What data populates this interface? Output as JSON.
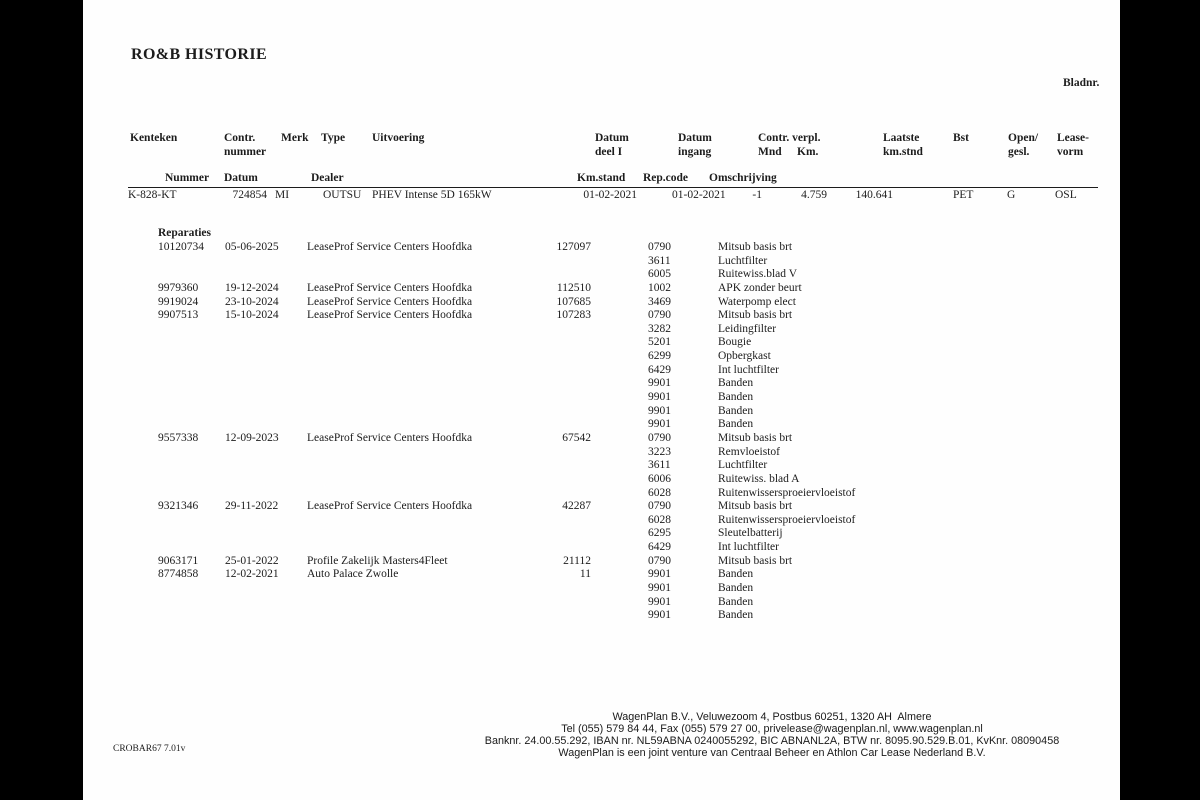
{
  "colors": {
    "outside_bg": "#000000",
    "page_bg": "#fefefe",
    "text": "#1c1c1c"
  },
  "header": {
    "title": "RO&B HISTORIE",
    "bladnr_label": "Bladnr."
  },
  "columns_top": {
    "kenteken": "Kenteken",
    "contr_l1": "Contr.",
    "contr_l2": "nummer",
    "merk": "Merk",
    "type": "Type",
    "uitvoering": "Uitvoering",
    "datum_deel1_l1": "Datum",
    "datum_deel1_l2": "deel I",
    "datum_ingang_l1": "Datum",
    "datum_ingang_l2": "ingang",
    "contr_verpl": "Contr. verpl.",
    "mnd": "Mnd",
    "km": "Km.",
    "laatste_l1": "Laatste",
    "laatste_l2": "km.stnd",
    "bst": "Bst",
    "open_l1": "Open/",
    "open_l2": "gesl.",
    "lease_l1": "Lease-",
    "lease_l2": "vorm"
  },
  "columns_sub": {
    "nummer": "Nummer",
    "datum": "Datum",
    "dealer": "Dealer",
    "km_stand": "Km.stand",
    "rep_code": "Rep.code",
    "omschrijving": "Omschrijving"
  },
  "contract": {
    "kenteken": "K-828-KT",
    "contr_nummer": "724854",
    "merk": "MI",
    "type": "OUTSU",
    "uitvoering": "PHEV Intense 5D 165kW",
    "datum_deel1": "01-02-2021",
    "datum_ingang": "01-02-2021",
    "contr_verpl_mnd": "-1",
    "contr_verpl_km": "4.759",
    "laatste_km_stnd": "140.641",
    "bst": "PET",
    "open_gesl": "G",
    "leasevorm": "OSL"
  },
  "reparaties_label": "Reparaties",
  "reparaties": [
    {
      "nummer": "10120734",
      "datum": "05-06-2025",
      "dealer": "LeaseProf Service Centers Hoofdka",
      "km_stand": "127097",
      "regels": [
        {
          "code": "0790",
          "omschrijving": "Mitsub basis brt"
        },
        {
          "code": "3611",
          "omschrijving": "Luchtfilter"
        },
        {
          "code": "6005",
          "omschrijving": "Ruitewiss.blad V"
        }
      ]
    },
    {
      "nummer": "9979360",
      "datum": "19-12-2024",
      "dealer": "LeaseProf Service Centers Hoofdka",
      "km_stand": "112510",
      "regels": [
        {
          "code": "1002",
          "omschrijving": "APK zonder beurt"
        }
      ]
    },
    {
      "nummer": "9919024",
      "datum": "23-10-2024",
      "dealer": "LeaseProf Service Centers Hoofdka",
      "km_stand": "107685",
      "regels": [
        {
          "code": "3469",
          "omschrijving": "Waterpomp elect"
        }
      ]
    },
    {
      "nummer": "9907513",
      "datum": "15-10-2024",
      "dealer": "LeaseProf Service Centers Hoofdka",
      "km_stand": "107283",
      "regels": [
        {
          "code": "0790",
          "omschrijving": "Mitsub basis brt"
        },
        {
          "code": "3282",
          "omschrijving": "Leidingfilter"
        },
        {
          "code": "5201",
          "omschrijving": "Bougie"
        },
        {
          "code": "6299",
          "omschrijving": "Opbergkast"
        },
        {
          "code": "6429",
          "omschrijving": "Int luchtfilter"
        },
        {
          "code": "9901",
          "omschrijving": "Banden"
        },
        {
          "code": "9901",
          "omschrijving": "Banden"
        },
        {
          "code": "9901",
          "omschrijving": "Banden"
        },
        {
          "code": "9901",
          "omschrijving": "Banden"
        }
      ]
    },
    {
      "nummer": "9557338",
      "datum": "12-09-2023",
      "dealer": "LeaseProf Service Centers Hoofdka",
      "km_stand": "67542",
      "regels": [
        {
          "code": "0790",
          "omschrijving": "Mitsub basis brt"
        },
        {
          "code": "3223",
          "omschrijving": "Remvloeistof"
        },
        {
          "code": "3611",
          "omschrijving": "Luchtfilter"
        },
        {
          "code": "6006",
          "omschrijving": "Ruitewiss. blad A"
        },
        {
          "code": "6028",
          "omschrijving": "Ruitenwissersproeiervloeistof"
        }
      ]
    },
    {
      "nummer": "9321346",
      "datum": "29-11-2022",
      "dealer": "LeaseProf Service Centers Hoofdka",
      "km_stand": "42287",
      "regels": [
        {
          "code": "0790",
          "omschrijving": "Mitsub basis brt"
        },
        {
          "code": "6028",
          "omschrijving": "Ruitenwissersproeiervloeistof"
        },
        {
          "code": "6295",
          "omschrijving": "Sleutelbatterij"
        },
        {
          "code": "6429",
          "omschrijving": "Int luchtfilter"
        }
      ]
    },
    {
      "nummer": "9063171",
      "datum": "25-01-2022",
      "dealer": "Profile Zakelijk Masters4Fleet",
      "km_stand": "21112",
      "regels": [
        {
          "code": "0790",
          "omschrijving": "Mitsub basis brt"
        }
      ]
    },
    {
      "nummer": "8774858",
      "datum": "12-02-2021",
      "dealer": "Auto Palace Zwolle",
      "km_stand": "11",
      "regels": [
        {
          "code": "9901",
          "omschrijving": "Banden"
        },
        {
          "code": "9901",
          "omschrijving": "Banden"
        },
        {
          "code": "9901",
          "omschrijving": "Banden"
        },
        {
          "code": "9901",
          "omschrijving": "Banden"
        }
      ]
    }
  ],
  "footer": {
    "lines": [
      "WagenPlan B.V., Veluwezoom 4, Postbus 60251, 1320 AH  Almere",
      "Tel (055) 579 84 44, Fax (055) 579 27 00, privelease@wagenplan.nl, www.wagenplan.nl",
      "Banknr. 24.00.55.292, IBAN nr. NL59ABNA 0240055292, BIC ABNANL2A, BTW nr. 8095.90.529.B.01, KvKnr. 08090458",
      "WagenPlan is een joint venture van Centraal Beheer en Athlon Car Lease Nederland B.V."
    ],
    "version": "CROBAR67 7.01v"
  }
}
